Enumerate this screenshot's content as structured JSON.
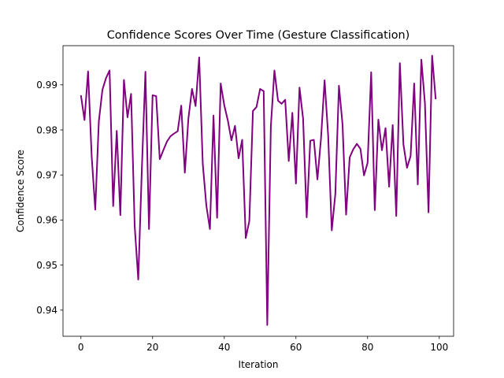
{
  "chart_data": {
    "type": "line",
    "title": "Confidence Scores Over Time (Gesture Classification)",
    "xlabel": "Iteration",
    "ylabel": "Confidence Score",
    "xlim": [
      -5,
      104
    ],
    "ylim": [
      0.9342,
      0.9987
    ],
    "xticks": [
      0,
      20,
      40,
      60,
      80,
      100
    ],
    "yticks": [
      0.94,
      0.95,
      0.96,
      0.97,
      0.98,
      0.99
    ],
    "grid": false,
    "legend": "none",
    "series_color": "#800080",
    "x": [
      0,
      1,
      2,
      3,
      4,
      5,
      6,
      7,
      8,
      9,
      10,
      11,
      12,
      13,
      14,
      15,
      16,
      17,
      18,
      19,
      20,
      21,
      22,
      23,
      24,
      25,
      26,
      27,
      28,
      29,
      30,
      31,
      32,
      33,
      34,
      35,
      36,
      37,
      38,
      39,
      40,
      41,
      42,
      43,
      44,
      45,
      46,
      47,
      48,
      49,
      50,
      51,
      52,
      53,
      54,
      55,
      56,
      57,
      58,
      59,
      60,
      61,
      62,
      63,
      64,
      65,
      66,
      67,
      68,
      69,
      70,
      71,
      72,
      73,
      74,
      75,
      76,
      77,
      78,
      79,
      80,
      81,
      82,
      83,
      84,
      85,
      86,
      87,
      88,
      89,
      90,
      91,
      92,
      93,
      94,
      95,
      96,
      97,
      98,
      99
    ],
    "values": [
      0.9877,
      0.9822,
      0.993,
      0.9742,
      0.9623,
      0.9819,
      0.9889,
      0.9915,
      0.9932,
      0.9631,
      0.9798,
      0.9611,
      0.9911,
      0.9828,
      0.988,
      0.9587,
      0.9468,
      0.9712,
      0.9929,
      0.958,
      0.9877,
      0.9875,
      0.9735,
      0.9755,
      0.9774,
      0.9786,
      0.9792,
      0.9797,
      0.9854,
      0.9705,
      0.9826,
      0.9891,
      0.9853,
      0.9961,
      0.9725,
      0.9632,
      0.958,
      0.9832,
      0.9605,
      0.9903,
      0.9855,
      0.9821,
      0.9777,
      0.9809,
      0.9737,
      0.9778,
      0.956,
      0.9598,
      0.9842,
      0.9851,
      0.9891,
      0.9886,
      0.9367,
      0.9808,
      0.9932,
      0.9865,
      0.9858,
      0.9867,
      0.9731,
      0.9838,
      0.9681,
      0.9894,
      0.9825,
      0.9606,
      0.9776,
      0.9778,
      0.969,
      0.9781,
      0.991,
      0.9787,
      0.9577,
      0.9658,
      0.9898,
      0.9813,
      0.9612,
      0.9739,
      0.9757,
      0.9769,
      0.9758,
      0.9699,
      0.9727,
      0.9928,
      0.9622,
      0.9823,
      0.9755,
      0.9804,
      0.9674,
      0.9811,
      0.9609,
      0.9948,
      0.9768,
      0.9716,
      0.9742,
      0.9903,
      0.9679,
      0.9956,
      0.9859,
      0.9617,
      0.9965,
      0.9868
    ]
  }
}
